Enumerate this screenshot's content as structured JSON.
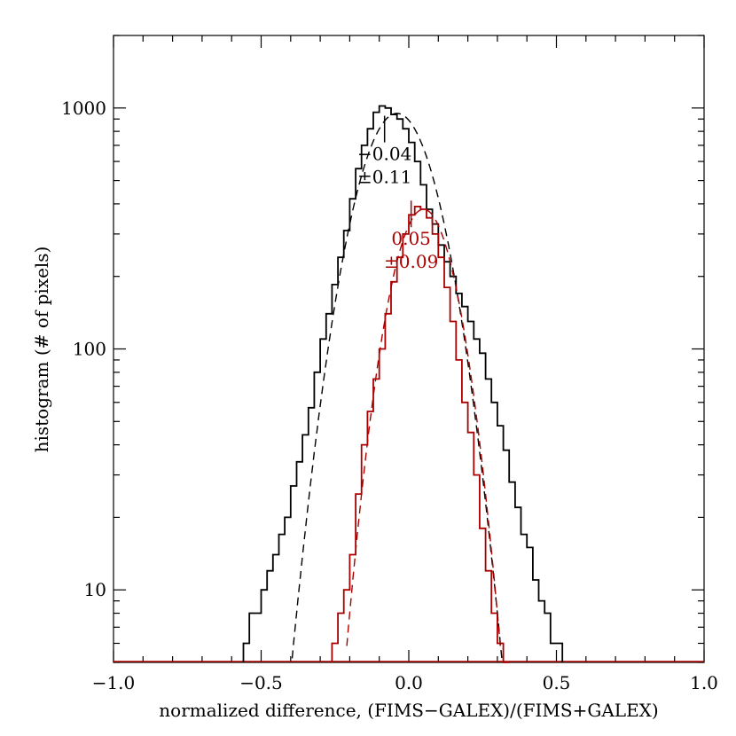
{
  "chart_data": {
    "type": "line",
    "title": "",
    "xlabel": "normalized difference, (FIMS−GALEX)/(FIMS+GALEX)",
    "ylabel": "histogram (# of pixels)",
    "xlim": [
      -1.0,
      1.0
    ],
    "ylim": [
      5,
      2000
    ],
    "yscale": "log",
    "x_ticks": [
      -1.0,
      -0.5,
      0.0,
      0.5,
      1.0
    ],
    "x_tick_labels": [
      "−1.0",
      "−0.5",
      "0.0",
      "0.5",
      "1.0"
    ],
    "y_ticks": [
      10,
      100,
      1000
    ],
    "y_tick_labels": [
      "10",
      "100",
      "1000"
    ],
    "grid": false,
    "series": [
      {
        "color": "#000000",
        "style": "histogram-step",
        "x": [
          -0.55,
          -0.53,
          -0.51,
          -0.49,
          -0.47,
          -0.45,
          -0.43,
          -0.41,
          -0.39,
          -0.37,
          -0.35,
          -0.33,
          -0.31,
          -0.29,
          -0.27,
          -0.25,
          -0.23,
          -0.21,
          -0.19,
          -0.17,
          -0.15,
          -0.13,
          -0.11,
          -0.09,
          -0.07,
          -0.05,
          -0.03,
          -0.01,
          0.01,
          0.03,
          0.05,
          0.07,
          0.09,
          0.11,
          0.13,
          0.15,
          0.17,
          0.19,
          0.21,
          0.23,
          0.25,
          0.27,
          0.29,
          0.31,
          0.33,
          0.35,
          0.37,
          0.39,
          0.41,
          0.43,
          0.45,
          0.47,
          0.49,
          0.51
        ],
        "values": [
          6,
          8,
          8,
          10,
          12,
          14,
          17,
          20,
          27,
          34,
          44,
          57,
          80,
          110,
          140,
          185,
          240,
          310,
          420,
          560,
          700,
          820,
          960,
          1020,
          1000,
          940,
          900,
          820,
          720,
          600,
          480,
          380,
          330,
          270,
          230,
          200,
          170,
          150,
          130,
          110,
          96,
          75,
          60,
          48,
          38,
          28,
          22,
          17,
          15,
          11,
          9,
          8,
          6,
          6
        ]
      },
      {
        "color": "#aa0000",
        "style": "histogram-step",
        "x": [
          -0.25,
          -0.23,
          -0.21,
          -0.19,
          -0.17,
          -0.15,
          -0.13,
          -0.11,
          -0.09,
          -0.07,
          -0.05,
          -0.03,
          -0.01,
          0.01,
          0.03,
          0.05,
          0.07,
          0.09,
          0.11,
          0.13,
          0.15,
          0.17,
          0.19,
          0.21,
          0.23,
          0.25,
          0.27,
          0.29,
          0.31,
          0.33
        ],
        "values": [
          6,
          8,
          10,
          14,
          25,
          40,
          55,
          75,
          100,
          140,
          190,
          240,
          300,
          360,
          390,
          380,
          350,
          300,
          240,
          180,
          130,
          90,
          60,
          45,
          30,
          18,
          12,
          8,
          6,
          5
        ]
      },
      {
        "color": "#000000",
        "style": "dashed-gaussian-fit",
        "mean": -0.04,
        "sigma": 0.11,
        "peak": 950
      },
      {
        "color": "#aa0000",
        "style": "dashed-gaussian-fit",
        "mean": 0.05,
        "sigma": 0.09,
        "peak": 380
      }
    ],
    "annotations": [
      {
        "mean_text": "−0.04",
        "sigma_text": "±0.11",
        "color": "#000000",
        "x": -0.04,
        "y": 720
      },
      {
        "mean_text": "0.05",
        "sigma_text": "±0.09",
        "color": "#aa0000",
        "x": 0.05,
        "y": 320
      }
    ]
  }
}
